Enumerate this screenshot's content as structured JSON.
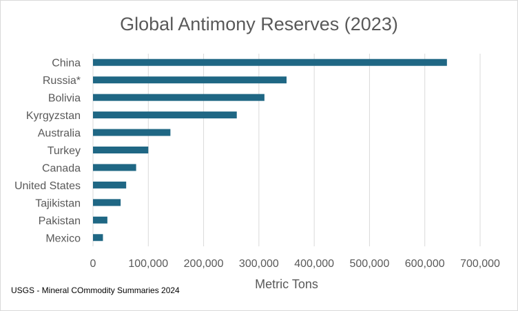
{
  "chart_data": {
    "type": "bar",
    "orientation": "horizontal",
    "title": "Global Antimony Reserves (2023)",
    "xlabel": "Metric Tons",
    "ylabel": "",
    "categories": [
      "China",
      "Russia*",
      "Bolivia",
      "Kyrgyzstan",
      "Australia",
      "Turkey",
      "Canada",
      "United States",
      "Tajikistan",
      "Pakistan",
      "Mexico"
    ],
    "values": [
      640000,
      350000,
      310000,
      260000,
      140000,
      100000,
      78000,
      60000,
      50000,
      26000,
      18000
    ],
    "xlim": [
      0,
      700000
    ],
    "xticks": [
      "0",
      "100,000",
      "200,000",
      "300,000",
      "400,000",
      "500,000",
      "600,000",
      "700,000"
    ],
    "grid": "vertical",
    "legend": "none",
    "bar_color": "#1f6784",
    "source_note": "USGS - Mineral COmmodity Summaries 2024"
  }
}
